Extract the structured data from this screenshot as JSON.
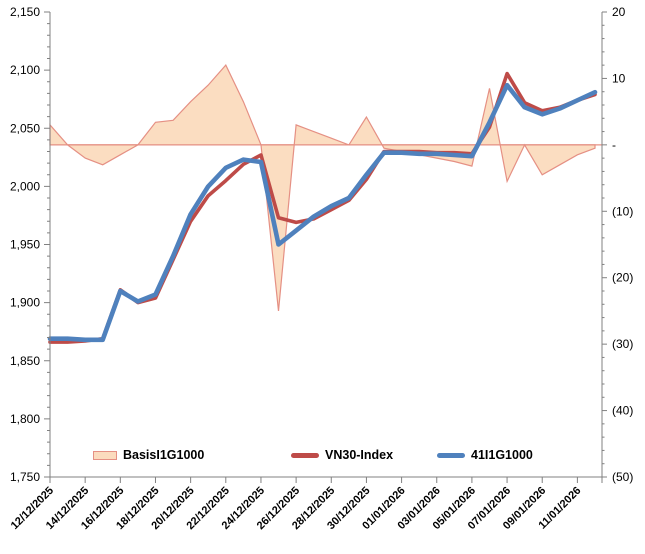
{
  "chart_data": {
    "type": "combo",
    "title": "",
    "x_axis": {
      "tick_labels": [
        "12/12/2025",
        "14/12/2025",
        "16/12/2025",
        "18/12/2025",
        "20/12/2025",
        "22/12/2025",
        "24/12/2025",
        "26/12/2025",
        "28/12/2025",
        "30/12/2025",
        "01/01/2026",
        "03/01/2026",
        "05/01/2026",
        "07/01/2026",
        "09/01/2026",
        "11/01/2026"
      ]
    },
    "categories": [
      "12/12/2025",
      "13/12/2025",
      "14/12/2025",
      "15/12/2025",
      "16/12/2025",
      "17/12/2025",
      "18/12/2025",
      "19/12/2025",
      "20/12/2025",
      "21/12/2025",
      "22/12/2025",
      "23/12/2025",
      "24/12/2025",
      "25/12/2025",
      "26/12/2025",
      "27/12/2025",
      "28/12/2025",
      "29/12/2025",
      "30/12/2025",
      "31/12/2025",
      "01/01/2026",
      "02/01/2026",
      "03/01/2026",
      "04/01/2026",
      "05/01/2026",
      "06/01/2026",
      "07/01/2026",
      "08/01/2026",
      "09/01/2026",
      "10/01/2026",
      "11/01/2026",
      "12/01/2026"
    ],
    "left_axis": {
      "min": 1750,
      "max": 2150,
      "major_step": 50,
      "minor_step": 10,
      "labels": [
        "2,150",
        "2,100",
        "2,050",
        "2,000",
        "1,950",
        "1,900",
        "1,850",
        "1,800",
        "1,750"
      ]
    },
    "right_axis": {
      "min": -50,
      "max": 20,
      "major_step": 10,
      "minor_step": 2,
      "labels": [
        "20",
        "10",
        "-",
        "(10)",
        "(20)",
        "(30)",
        "(40)",
        "(50)"
      ]
    },
    "series": [
      {
        "name": "BasisI1G1000",
        "type": "area",
        "axis": "right",
        "fill": "#FBDBBE",
        "stroke": "#E59084",
        "values": [
          3,
          0,
          -2,
          -3,
          -1.5,
          0,
          3.4,
          3.7,
          6.5,
          9,
          12,
          6.5,
          0,
          -25,
          3,
          2,
          1,
          0,
          4.2,
          -0.5,
          -1,
          -1.5,
          -2,
          -2.5,
          -3.2,
          8.5,
          -5.5,
          0,
          -4.5,
          -3,
          -1.5,
          -0.5
        ]
      },
      {
        "name": "VN30-Index",
        "type": "line",
        "axis": "left",
        "color": "#BE4B48",
        "values": [
          1866,
          1866,
          1867,
          1869,
          1911,
          1900,
          1904,
          1937,
          1970,
          1992,
          2005,
          2019,
          2027,
          1973,
          1969,
          1972,
          1980,
          1988,
          2006,
          2030,
          2030,
          2030,
          2029,
          2029,
          2028,
          2051,
          2097,
          2072,
          2065,
          2068,
          2074,
          2079
        ]
      },
      {
        "name": "41I1G1000",
        "type": "line",
        "axis": "left",
        "color": "#4F81BD",
        "values": [
          1869,
          1869,
          1868,
          1868,
          1910,
          1901,
          1907,
          1940,
          1976,
          2000,
          2016,
          2023,
          2021,
          1950,
          1962,
          1974,
          1983,
          1990,
          2010,
          2029,
          2029,
          2028,
          2028,
          2027,
          2026,
          2055,
          2087,
          2068,
          2062,
          2067,
          2074,
          2081
        ]
      }
    ],
    "zero_line_color": "#E59084",
    "axis_color": "#808080",
    "legend_position": "bottom"
  }
}
